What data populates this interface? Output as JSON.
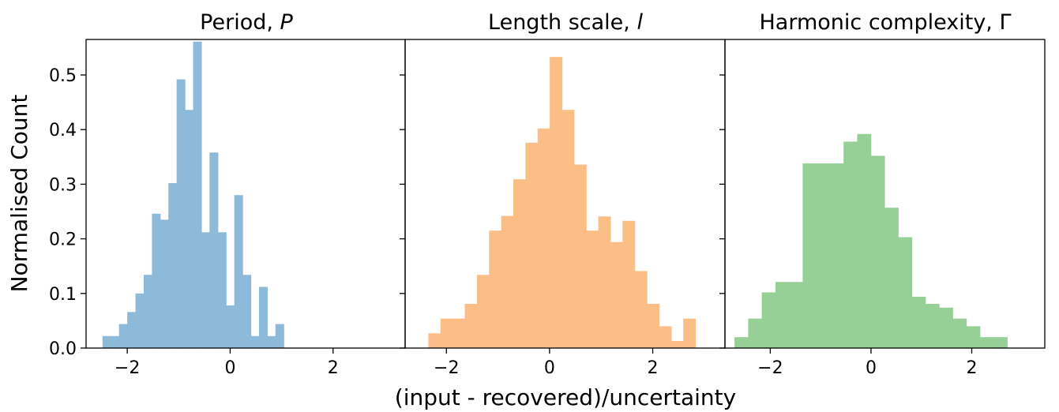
{
  "figure": {
    "ylabel": "Normalised Count",
    "xlabel": "(input - recovered)/uncertainty"
  },
  "chart_data": [
    {
      "type": "bar",
      "title": "Period, P",
      "title_text": "Period, ",
      "title_symbol": "P",
      "color": "#8dbad9",
      "bin_width": 0.16,
      "bin_start": -2.48,
      "values": [
        0.022,
        0.022,
        0.044,
        0.066,
        0.1,
        0.134,
        0.246,
        0.235,
        0.302,
        0.492,
        0.436,
        0.561,
        0.212,
        0.358,
        0.212,
        0.078,
        0.28,
        0.134,
        0.022,
        0.112,
        0.022,
        0.044
      ],
      "xlim": [
        -2.8,
        3.4
      ],
      "ylim": [
        0,
        0.565
      ],
      "xticks": [
        -2,
        0,
        2
      ],
      "xtick_labels": [
        "−2",
        "0",
        "2"
      ],
      "yticks": [
        0.0,
        0.1,
        0.2,
        0.3,
        0.4,
        0.5
      ],
      "ytick_labels": [
        "0.0",
        "0.1",
        "0.2",
        "0.3",
        "0.4",
        "0.5"
      ]
    },
    {
      "type": "bar",
      "title": "Length scale, l",
      "title_text": "Length scale, ",
      "title_symbol": "l",
      "color": "#fcbe87",
      "bin_width": 0.2353,
      "bin_start": -2.35,
      "values": [
        0.027,
        0.054,
        0.054,
        0.081,
        0.134,
        0.215,
        0.242,
        0.309,
        0.376,
        0.402,
        0.533,
        0.436,
        0.336,
        0.215,
        0.241,
        0.194,
        0.233,
        0.141,
        0.081,
        0.04,
        0.013,
        0.054
      ],
      "xlim": [
        -2.8,
        3.4
      ],
      "ylim": [
        0,
        0.565
      ],
      "xticks": [
        -2,
        0,
        2
      ],
      "xtick_labels": [
        "−2",
        "0",
        "2"
      ],
      "yticks": [
        0.0,
        0.1,
        0.2,
        0.3,
        0.4,
        0.5
      ]
    },
    {
      "type": "bar",
      "title": "Harmonic complexity, Γ",
      "color": "#96d096",
      "bin_width": 0.2706,
      "bin_start": -2.71,
      "values": [
        0.02,
        0.054,
        0.102,
        0.121,
        0.121,
        0.338,
        0.338,
        0.338,
        0.378,
        0.392,
        0.352,
        0.257,
        0.203,
        0.094,
        0.081,
        0.074,
        0.054,
        0.04,
        0.02,
        0.02
      ],
      "xlim": [
        -2.9,
        3.45
      ],
      "ylim": [
        0,
        0.565
      ],
      "xticks": [
        -2,
        0,
        2
      ],
      "xtick_labels": [
        "−2",
        "0",
        "2"
      ],
      "yticks": [
        0.0,
        0.1,
        0.2,
        0.3,
        0.4,
        0.5
      ]
    }
  ]
}
